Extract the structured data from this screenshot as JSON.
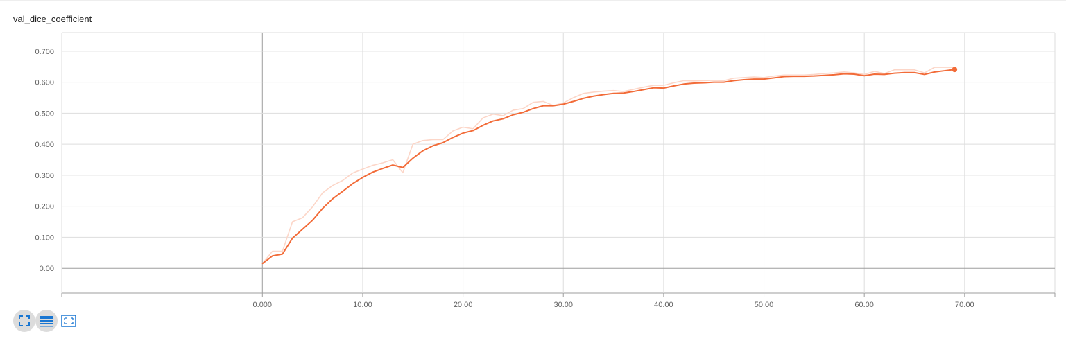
{
  "card": {
    "title": "val_dice_coefficient"
  },
  "toolbar": {
    "buttons": [
      {
        "icon": "fullscreen-icon",
        "active": true
      },
      {
        "icon": "list-icon",
        "active": true
      },
      {
        "icon": "fit-domain-icon",
        "active": false
      }
    ],
    "accent": "#1976d2"
  },
  "colors": {
    "smoothed": "#f26b38",
    "raw": "#fcd6c8",
    "grid": "#dddddd",
    "axis": "#9e9e9e"
  },
  "chart_data": {
    "type": "line",
    "title": "val_dice_coefficient",
    "xlabel": "",
    "ylabel": "",
    "xlim": [
      -20,
      79
    ],
    "ylim": [
      -0.08,
      0.76
    ],
    "x_ticks": [
      0,
      10,
      20,
      30,
      40,
      50,
      60,
      70
    ],
    "x_tick_labels": [
      "0.000",
      "10.00",
      "20.00",
      "30.00",
      "40.00",
      "50.00",
      "60.00",
      "70.00"
    ],
    "y_ticks": [
      0.0,
      0.1,
      0.2,
      0.3,
      0.4,
      0.5,
      0.6,
      0.7
    ],
    "y_tick_labels": [
      "0.00",
      "0.100",
      "0.200",
      "0.300",
      "0.400",
      "0.500",
      "0.600",
      "0.700"
    ],
    "grid": true,
    "series": [
      {
        "role": "raw",
        "x": [
          0,
          1,
          2,
          3,
          4,
          5,
          6,
          7,
          8,
          9,
          10,
          11,
          12,
          13,
          14,
          15,
          16,
          17,
          18,
          19,
          20,
          21,
          22,
          23,
          24,
          25,
          26,
          27,
          28,
          29,
          30,
          31,
          32,
          33,
          34,
          35,
          36,
          37,
          38,
          39,
          40,
          41,
          42,
          43,
          44,
          45,
          46,
          47,
          48,
          49,
          50,
          51,
          52,
          53,
          54,
          55,
          56,
          57,
          58,
          59,
          60,
          61,
          62,
          63,
          64,
          65,
          66,
          67,
          68,
          69
        ],
        "y": [
          0.015,
          0.055,
          0.055,
          0.15,
          0.163,
          0.198,
          0.243,
          0.267,
          0.283,
          0.307,
          0.32,
          0.332,
          0.34,
          0.35,
          0.308,
          0.4,
          0.412,
          0.415,
          0.415,
          0.443,
          0.455,
          0.45,
          0.485,
          0.497,
          0.492,
          0.51,
          0.515,
          0.535,
          0.538,
          0.525,
          0.533,
          0.55,
          0.564,
          0.568,
          0.571,
          0.573,
          0.57,
          0.577,
          0.584,
          0.59,
          0.59,
          0.598,
          0.605,
          0.604,
          0.605,
          0.606,
          0.605,
          0.613,
          0.615,
          0.617,
          0.615,
          0.62,
          0.623,
          0.623,
          0.623,
          0.625,
          0.628,
          0.63,
          0.633,
          0.63,
          0.625,
          0.635,
          0.628,
          0.64,
          0.64,
          0.64,
          0.63,
          0.648,
          0.648,
          0.648
        ]
      },
      {
        "role": "smoothed",
        "x": [
          0,
          1,
          2,
          3,
          4,
          5,
          6,
          7,
          8,
          9,
          10,
          11,
          12,
          13,
          14,
          15,
          16,
          17,
          18,
          19,
          20,
          21,
          22,
          23,
          24,
          25,
          26,
          27,
          28,
          29,
          30,
          31,
          32,
          33,
          34,
          35,
          36,
          37,
          38,
          39,
          40,
          41,
          42,
          43,
          44,
          45,
          46,
          47,
          48,
          49,
          50,
          51,
          52,
          53,
          54,
          55,
          56,
          57,
          58,
          59,
          60,
          61,
          62,
          63,
          64,
          65,
          66,
          67,
          68,
          69
        ],
        "y": [
          0.015,
          0.04,
          0.046,
          0.097,
          0.126,
          0.155,
          0.193,
          0.224,
          0.248,
          0.273,
          0.293,
          0.31,
          0.322,
          0.333,
          0.325,
          0.355,
          0.379,
          0.395,
          0.405,
          0.422,
          0.436,
          0.444,
          0.461,
          0.475,
          0.482,
          0.495,
          0.503,
          0.515,
          0.524,
          0.524,
          0.529,
          0.538,
          0.548,
          0.555,
          0.56,
          0.564,
          0.565,
          0.57,
          0.576,
          0.582,
          0.581,
          0.588,
          0.594,
          0.597,
          0.598,
          0.6,
          0.6,
          0.605,
          0.608,
          0.61,
          0.61,
          0.614,
          0.618,
          0.619,
          0.619,
          0.62,
          0.622,
          0.624,
          0.627,
          0.626,
          0.621,
          0.626,
          0.625,
          0.629,
          0.631,
          0.631,
          0.625,
          0.633,
          0.637,
          0.641
        ]
      }
    ]
  }
}
